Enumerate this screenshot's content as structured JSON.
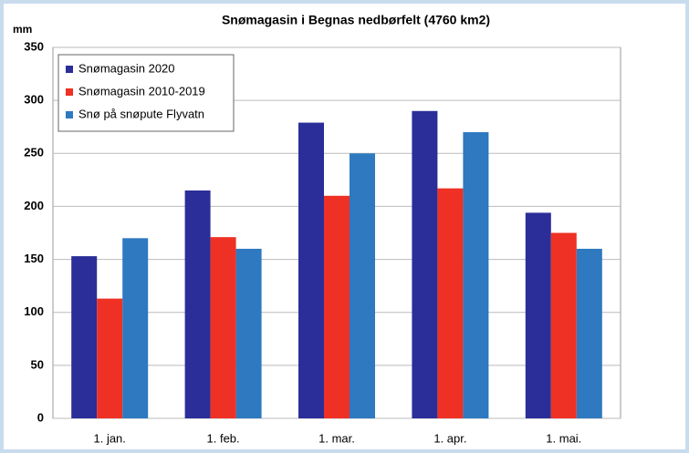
{
  "chart_data": {
    "type": "bar",
    "title": "Snømagasin i Begnas nedbørfelt (4760 km2)",
    "y_label": "mm",
    "categories": [
      "1. jan.",
      "1. feb.",
      "1. mar.",
      "1. apr.",
      "1. mai."
    ],
    "series": [
      {
        "name": "Snømagasin 2020",
        "color": "#2b2e98",
        "values": [
          153,
          215,
          279,
          290,
          194
        ]
      },
      {
        "name": "Snømagasin 2010-2019",
        "color": "#ee3124",
        "values": [
          113,
          171,
          210,
          217,
          175
        ]
      },
      {
        "name": "Snø på snøpute Flyvatn",
        "color": "#2e79c0",
        "values": [
          170,
          160,
          250,
          270,
          160
        ]
      }
    ],
    "ylim": [
      0,
      350
    ],
    "yticks": [
      0,
      50,
      100,
      150,
      200,
      250,
      300,
      350
    ],
    "grid": true,
    "legend": "upper left"
  }
}
